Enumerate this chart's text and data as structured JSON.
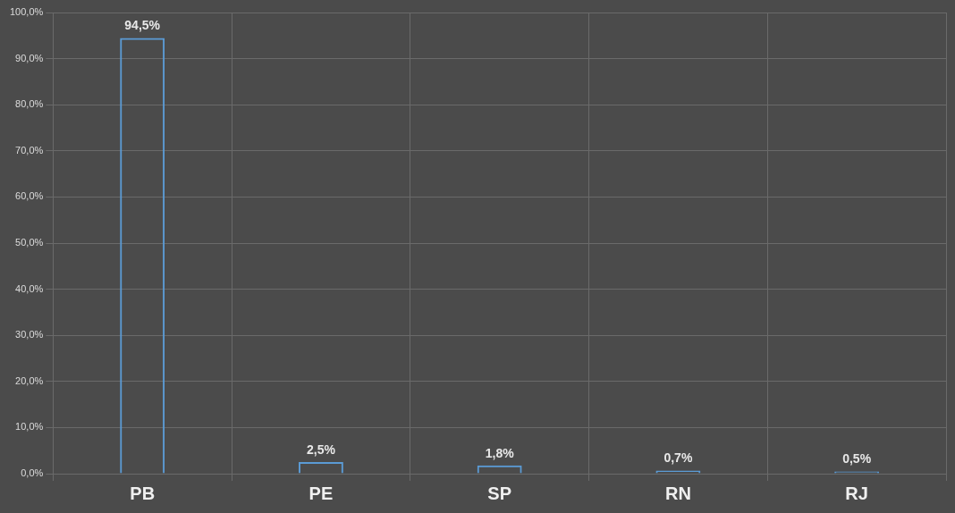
{
  "chart_data": {
    "type": "bar",
    "categories": [
      "PB",
      "PE",
      "SP",
      "RN",
      "RJ"
    ],
    "values": [
      94.5,
      2.5,
      1.8,
      0.7,
      0.5
    ],
    "value_labels": [
      "94,5%",
      "2,5%",
      "1,8%",
      "0,7%",
      "0,5%"
    ],
    "color": "#5b9bd5",
    "ylim": [
      0,
      100
    ],
    "yticks": [
      {
        "value": 0,
        "label": "0,0%"
      },
      {
        "value": 10,
        "label": "10,0%"
      },
      {
        "value": 20,
        "label": "20,0%"
      },
      {
        "value": 30,
        "label": "30,0%"
      },
      {
        "value": 40,
        "label": "40,0%"
      },
      {
        "value": 50,
        "label": "50,0%"
      },
      {
        "value": 60,
        "label": "60,0%"
      },
      {
        "value": 70,
        "label": "70,0%"
      },
      {
        "value": 80,
        "label": "80,0%"
      },
      {
        "value": 90,
        "label": "90,0%"
      },
      {
        "value": 100,
        "label": "100,0%"
      }
    ],
    "grid": true
  }
}
